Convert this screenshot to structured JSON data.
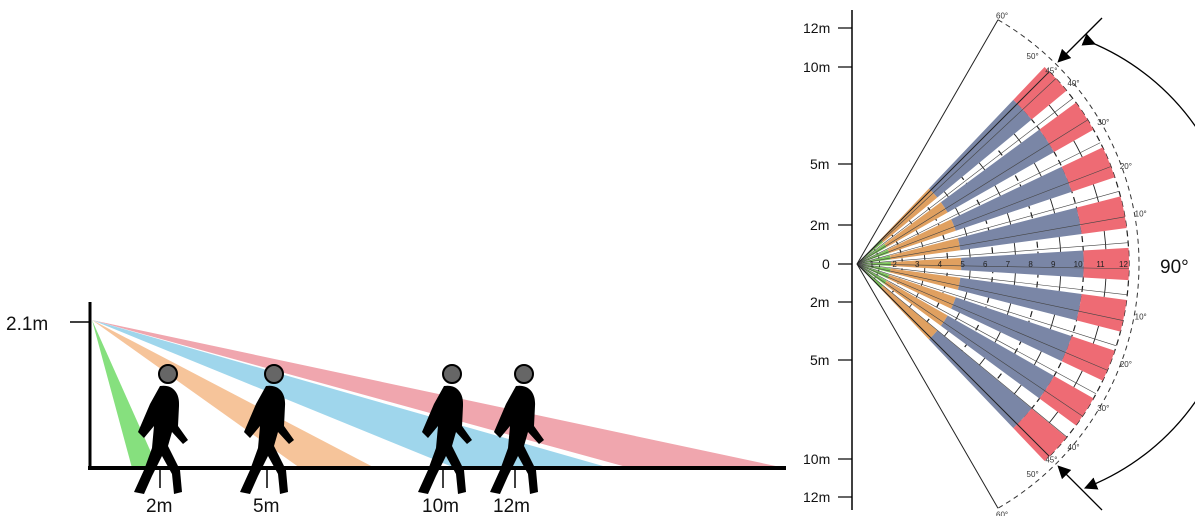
{
  "side_view": {
    "height_label": "2.1m",
    "distance_labels": [
      "2m",
      "5m",
      "10m",
      "12m"
    ],
    "beam_colors": {
      "green": "#86e07e",
      "orange": "#f6c49a",
      "blue": "#9fd6ec",
      "red": "#f0a6ae"
    }
  },
  "top_view": {
    "y_axis_labels": [
      "12m",
      "10m",
      "5m",
      "2m",
      "0",
      "2m",
      "5m",
      "10m",
      "12m"
    ],
    "ring_labels": [
      "1",
      "2",
      "3",
      "4",
      "5",
      "6",
      "7",
      "8",
      "9",
      "10",
      "11",
      "12"
    ],
    "angle_labels_upper": [
      "60°",
      "50°",
      "45°",
      "40°",
      "30°",
      "20°",
      "10°"
    ],
    "angle_labels_lower": [
      "10°",
      "20°",
      "30°",
      "40°",
      "45°",
      "50°",
      "60°"
    ],
    "coverage_angle": "90°",
    "zone_colors": {
      "near": "#7cc45a",
      "mid": "#e0a060",
      "far": "#7a86a6",
      "edge": "#ee6b74"
    }
  }
}
